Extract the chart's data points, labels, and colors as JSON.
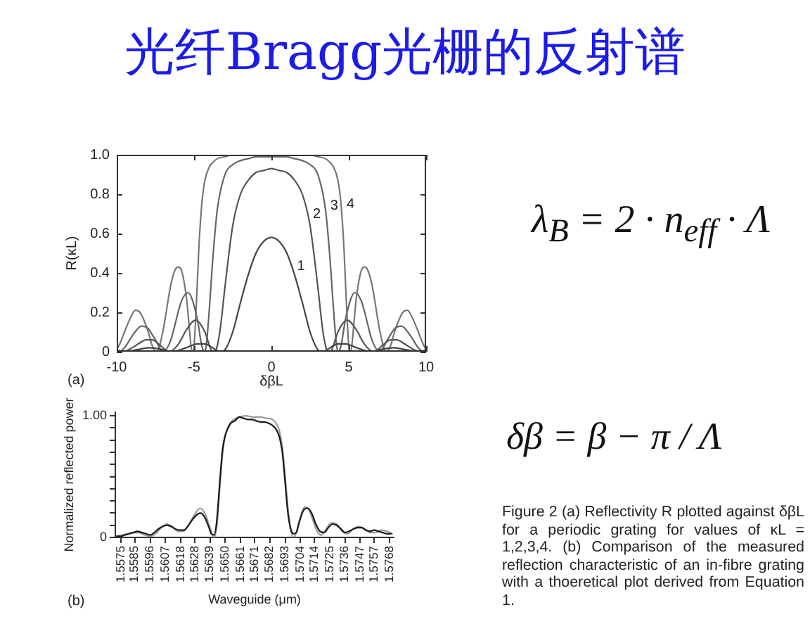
{
  "chart_data": [
    {
      "type": "line",
      "title": "光纤Bragg光栅的反射谱",
      "xlabel": "δβL",
      "ylabel": "R(κL)",
      "annotations": [
        "(a)",
        "λ$_{B}$ = 2 · n$_{eff}$ · Λ"
      ],
      "xlim": [
        -10,
        10
      ],
      "xticks": [
        -10,
        -5,
        0,
        5,
        10
      ],
      "ylim": [
        0,
        1
      ],
      "yticks": [
        0,
        0.2,
        0.4,
        0.6,
        0.8,
        {
          "value": 1,
          "label": "1.0"
        }
      ],
      "marker": "none",
      "series": [
        {
          "name": "1",
          "color": "#444444",
          "x": [
            -10,
            -9.5,
            -8.7,
            -7.9,
            -7,
            -6.4,
            -5.9,
            -5.5,
            -5.2,
            -4.8,
            -4.3,
            -4,
            -3.6,
            -3.3,
            -3,
            -2.5,
            -2,
            -1.5,
            -1,
            -0.5,
            0,
            0.5,
            1,
            1.5,
            2,
            2.5,
            3,
            3.3,
            3.6,
            4,
            4.3,
            4.8,
            5.2,
            5.5,
            5.9,
            6.4,
            7,
            7.9,
            8.7,
            9.5,
            10
          ],
          "values": [
            0,
            0,
            0.01,
            0.02,
            0.01,
            0,
            0.01,
            0.02,
            0.03,
            0.04,
            0.04,
            0.03,
            0.01,
            0,
            0.01,
            0.1,
            0.25,
            0.39,
            0.5,
            0.56,
            0.58,
            0.56,
            0.5,
            0.39,
            0.25,
            0.1,
            0.01,
            0,
            0.01,
            0.03,
            0.04,
            0.04,
            0.03,
            0.02,
            0.01,
            0,
            0.01,
            0.02,
            0.01,
            0,
            0
          ]
        },
        {
          "name": "2",
          "color": "#555555",
          "x": [
            -10,
            -9.6,
            -9,
            -8.6,
            -8.1,
            -7.7,
            -7.3,
            -6.6,
            -6,
            -5.5,
            -4.9,
            -4.3,
            -3.9,
            -3.7,
            -3.5,
            -3.3,
            -3,
            -2.5,
            -2,
            -1.5,
            -1,
            -0.5,
            0,
            0.5,
            1,
            1.5,
            2,
            2.5,
            3,
            3.3,
            3.5,
            3.7,
            3.9,
            4.3,
            4.9,
            5.5,
            6,
            6.6,
            7.3,
            7.7,
            8.1,
            8.6,
            9,
            9.6,
            10
          ],
          "values": [
            0.01,
            0,
            0.02,
            0.04,
            0.06,
            0.06,
            0.04,
            0,
            0.04,
            0.11,
            0.16,
            0.1,
            0.01,
            0,
            0.03,
            0.12,
            0.33,
            0.64,
            0.8,
            0.87,
            0.91,
            0.92,
            0.93,
            0.92,
            0.91,
            0.87,
            0.8,
            0.64,
            0.33,
            0.12,
            0.03,
            0,
            0.01,
            0.1,
            0.16,
            0.11,
            0.04,
            0,
            0.04,
            0.06,
            0.06,
            0.04,
            0.02,
            0,
            0.01
          ]
        },
        {
          "name": "3",
          "color": "#666666",
          "x": [
            -10,
            -9.9,
            -9.5,
            -9,
            -8.4,
            -8,
            -7.5,
            -7,
            -6.5,
            -6,
            -5.8,
            -5.4,
            -4.8,
            -4.5,
            -4.3,
            -4.2,
            -4,
            -3.8,
            -3.5,
            -3,
            -2.5,
            -2,
            -1.5,
            -1,
            0,
            1,
            1.5,
            2,
            2.5,
            3,
            3.5,
            3.8,
            4,
            4.2,
            4.3,
            4.5,
            4.8,
            5.4,
            5.8,
            6,
            6.5,
            7,
            7.5,
            8,
            8.4,
            9,
            9.5,
            9.9,
            10
          ],
          "values": [
            0,
            0,
            0.02,
            0.08,
            0.13,
            0.12,
            0.06,
            0,
            0.06,
            0.21,
            0.26,
            0.3,
            0.17,
            0.03,
            0,
            0.04,
            0.23,
            0.46,
            0.72,
            0.9,
            0.95,
            0.97,
            0.98,
            0.99,
            0.99,
            0.99,
            0.98,
            0.97,
            0.95,
            0.9,
            0.72,
            0.46,
            0.23,
            0.04,
            0,
            0.03,
            0.17,
            0.3,
            0.26,
            0.21,
            0.06,
            0,
            0.06,
            0.12,
            0.13,
            0.08,
            0.02,
            0,
            0
          ]
        },
        {
          "name": "4",
          "color": "#777777",
          "x": [
            -10,
            -9.8,
            -9.5,
            -9,
            -8.8,
            -8.5,
            -8,
            -7.7,
            -7.4,
            -7,
            -6.5,
            -6.2,
            -6,
            -5.8,
            -5.5,
            -5.1,
            -5,
            -4.8,
            -4.7,
            -4.5,
            -4.3,
            -4,
            -3.8,
            -3.5,
            -3,
            -2.5,
            -2,
            -1,
            0,
            1,
            2,
            2.5,
            3,
            3.5,
            3.8,
            4,
            4.3,
            4.5,
            4.7,
            4.8,
            5,
            5.1,
            5.5,
            5.8,
            6,
            6.2,
            6.5,
            7,
            7.4,
            7.7,
            8,
            8.5,
            8.8,
            9,
            9.5,
            9.8,
            10
          ],
          "values": [
            0.01,
            0.04,
            0.1,
            0.19,
            0.21,
            0.2,
            0.11,
            0.03,
            0,
            0.11,
            0.34,
            0.42,
            0.43,
            0.41,
            0.28,
            0,
            0.03,
            0.33,
            0.51,
            0.75,
            0.87,
            0.94,
            0.96,
            0.98,
            0.99,
            1,
            1,
            1,
            1,
            1,
            1,
            1,
            0.99,
            0.98,
            0.96,
            0.94,
            0.87,
            0.75,
            0.51,
            0.33,
            0.03,
            0,
            0.28,
            0.41,
            0.43,
            0.42,
            0.34,
            0.11,
            0,
            0.03,
            0.11,
            0.2,
            0.21,
            0.19,
            0.1,
            0.04,
            0.01
          ]
        }
      ]
    },
    {
      "type": "line",
      "xlabel": "Waveguide (μm)",
      "ylabel": "Normalized reflected power",
      "annotations": [
        "(b)",
        "δβ = β − π / Λ",
        "Figure 2 (a) Reflectivity R plotted against δβL for a periodic grating for values of κL = 1,2,3,4. (b) Comparison of the measured reflection characteristic of an in-fibre grating with a thoeretical plot derived from Equation 1."
      ],
      "xlim": [
        1.5571,
        1.5771
      ],
      "xticks": [
        1.5575,
        1.5585,
        1.5596,
        1.5607,
        1.5618,
        1.5628,
        1.5639,
        {
          "value": 1.565,
          "label": "1.5650"
        },
        1.5661,
        1.5671,
        1.5682,
        1.5693,
        1.5704,
        1.5714,
        1.5725,
        1.5736,
        1.5747,
        1.5757,
        1.5768
      ],
      "ylim": [
        0,
        1.03
      ],
      "yticks": [
        0,
        {
          "value": 0.1,
          "label": null
        },
        {
          "value": 0.2,
          "label": null
        },
        {
          "value": 0.3,
          "label": null
        },
        {
          "value": 0.4,
          "label": null
        },
        {
          "value": 0.5,
          "label": null
        },
        {
          "value": 0.6,
          "label": null
        },
        {
          "value": 0.7,
          "label": null
        },
        {
          "value": 0.8,
          "label": null
        },
        {
          "value": 0.9,
          "label": null
        },
        {
          "value": 1,
          "label": "1.00"
        }
      ],
      "marker": "none",
      "series": [
        {
          "color": "#1a1a1a",
          "x": [
            1.5572,
            1.5575,
            1.5578,
            1.5581,
            1.5584,
            1.5587,
            1.559,
            1.5593,
            1.5596,
            1.5599,
            1.5602,
            1.5605,
            1.5608,
            1.5611,
            1.5614,
            1.5617,
            1.562,
            1.5623,
            1.5626,
            1.5629,
            1.5632,
            1.5635,
            1.5638,
            1.564,
            1.5642,
            1.5644,
            1.5646,
            1.5648,
            1.565,
            1.5652,
            1.5654,
            1.5657,
            1.566,
            1.5663,
            1.5666,
            1.5669,
            1.5672,
            1.5675,
            1.5678,
            1.5681,
            1.5684,
            1.5687,
            1.5689,
            1.5691,
            1.5693,
            1.5695,
            1.5697,
            1.5699,
            1.5701,
            1.5703,
            1.5706,
            1.5709,
            1.5712,
            1.5715,
            1.5718,
            1.5721,
            1.5724,
            1.5727,
            1.573,
            1.5733,
            1.5736,
            1.5739,
            1.5742,
            1.5745,
            1.5748,
            1.5751,
            1.5754,
            1.5757,
            1.576,
            1.5763,
            1.5766,
            1.5769
          ],
          "values": [
            0.01,
            0.01,
            0.02,
            0.03,
            0.04,
            0.05,
            0.04,
            0.03,
            0.02,
            0.04,
            0.07,
            0.09,
            0.1,
            0.09,
            0.07,
            0.06,
            0.06,
            0.09,
            0.14,
            0.18,
            0.2,
            0.17,
            0.09,
            0.03,
            0.02,
            0.15,
            0.45,
            0.72,
            0.84,
            0.9,
            0.94,
            0.96,
            0.99,
            0.98,
            0.97,
            0.97,
            0.96,
            0.95,
            0.95,
            0.94,
            0.92,
            0.88,
            0.82,
            0.7,
            0.45,
            0.2,
            0.07,
            0.03,
            0.04,
            0.12,
            0.22,
            0.24,
            0.2,
            0.11,
            0.05,
            0.04,
            0.08,
            0.11,
            0.1,
            0.07,
            0.04,
            0.05,
            0.07,
            0.08,
            0.08,
            0.06,
            0.05,
            0.06,
            0.05,
            0.04,
            0.03,
            0.03
          ]
        },
        {
          "color": "#9a9a9a",
          "x": [
            1.5572,
            1.5576,
            1.558,
            1.5584,
            1.5588,
            1.5592,
            1.5596,
            1.56,
            1.5604,
            1.5608,
            1.5612,
            1.5616,
            1.562,
            1.5624,
            1.5628,
            1.5632,
            1.5636,
            1.5639,
            1.5642,
            1.5644,
            1.5646,
            1.5648,
            1.565,
            1.5653,
            1.5656,
            1.566,
            1.5665,
            1.567,
            1.5675,
            1.568,
            1.5684,
            1.5687,
            1.5689,
            1.5691,
            1.5693,
            1.5695,
            1.5697,
            1.5699,
            1.5701,
            1.5704,
            1.5707,
            1.571,
            1.5713,
            1.5716,
            1.5719,
            1.5722,
            1.5726,
            1.573,
            1.5734,
            1.5738,
            1.5742,
            1.5746,
            1.575,
            1.5754,
            1.5758,
            1.5762,
            1.5766,
            1.577
          ],
          "values": [
            0.01,
            0.02,
            0.03,
            0.04,
            0.04,
            0.02,
            0.01,
            0.03,
            0.08,
            0.11,
            0.09,
            0.05,
            0.05,
            0.11,
            0.19,
            0.24,
            0.18,
            0.08,
            0,
            0.1,
            0.4,
            0.68,
            0.84,
            0.93,
            0.97,
            0.99,
            1,
            0.99,
            0.99,
            0.98,
            0.97,
            0.93,
            0.87,
            0.74,
            0.5,
            0.24,
            0.06,
            0,
            0.04,
            0.17,
            0.25,
            0.23,
            0.14,
            0.05,
            0.02,
            0.06,
            0.12,
            0.11,
            0.05,
            0.03,
            0.07,
            0.09,
            0.07,
            0.04,
            0.04,
            0.06,
            0.05,
            0.03
          ]
        }
      ]
    }
  ]
}
